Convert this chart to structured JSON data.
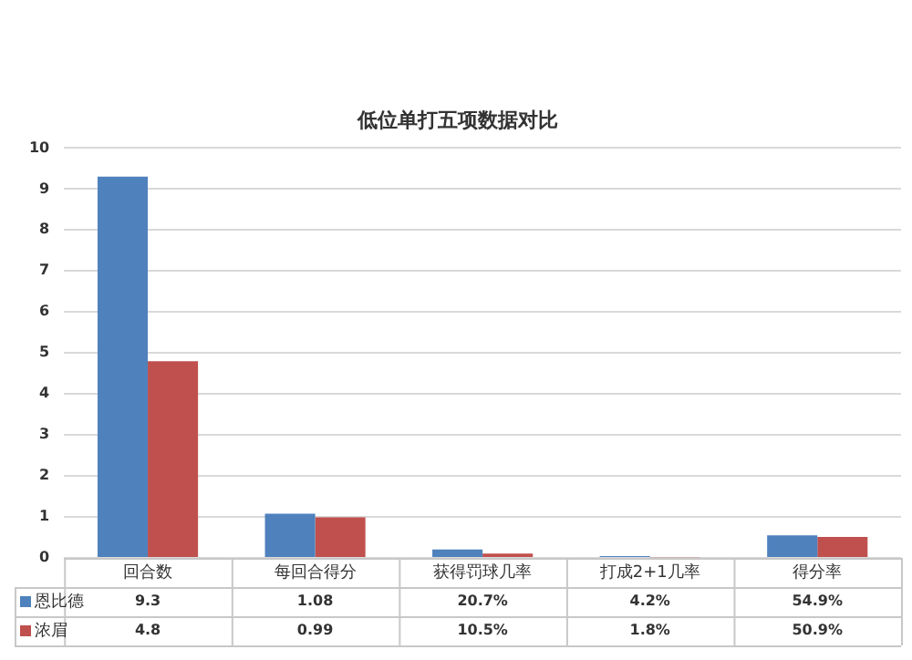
{
  "chart_data": {
    "type": "bar",
    "title": "低位单打五项数据对比",
    "categories": [
      "回合数",
      "每回合得分",
      "获得罚球几率",
      "打成2+1几率",
      "得分率"
    ],
    "series": [
      {
        "name": "恩比德",
        "color": "#4f81bd",
        "values": [
          9.3,
          1.08,
          0.207,
          0.042,
          0.549
        ],
        "value_labels": [
          "9.3",
          "1.08",
          "20.7%",
          "4.2%",
          "54.9%"
        ]
      },
      {
        "name": "浓眉",
        "color": "#c0504d",
        "values": [
          4.8,
          0.99,
          0.105,
          0.018,
          0.509
        ],
        "value_labels": [
          "4.8",
          "0.99",
          "10.5%",
          "1.8%",
          "50.9%"
        ]
      }
    ],
    "ylim": [
      0,
      10
    ],
    "yticks": [
      0,
      1,
      2,
      3,
      4,
      5,
      6,
      7,
      8,
      9,
      10
    ],
    "grid": "y",
    "legend": "bottom left"
  }
}
